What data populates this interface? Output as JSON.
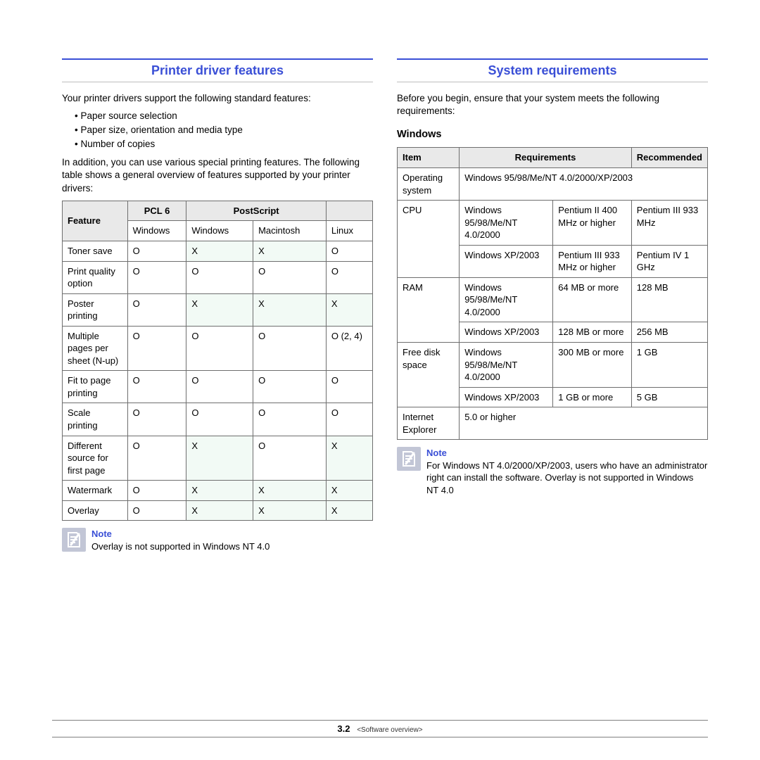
{
  "colors": {
    "accent": "#3a4fd6",
    "rule_grey": "#bdbdbd",
    "table_border": "#6e6e6e",
    "header_bg": "#e9e9e9",
    "tint_bg": "#f2faf5",
    "note_icon_bg": "#c2c6d6",
    "page_bg": "#ffffff",
    "text": "#000000"
  },
  "left": {
    "title": "Printer driver features",
    "intro": "Your printer drivers support the following standard features:",
    "bullets": [
      "Paper source selection",
      "Paper size, orientation and media type",
      "Number of copies"
    ],
    "para2": "In addition, you can use various special printing features. The following table shows a general overview of features supported by your printer drivers:",
    "table": {
      "header_top": {
        "feature": "Feature",
        "pcl": "PCL 6",
        "ps": "PostScript",
        "blank": ""
      },
      "header_sub": [
        "Windows",
        "Windows",
        "Macintosh",
        "Linux"
      ],
      "rows": [
        {
          "feature": "Toner save",
          "cells": [
            {
              "v": "O"
            },
            {
              "v": "X",
              "t": true
            },
            {
              "v": "X",
              "t": true
            },
            {
              "v": "O"
            }
          ]
        },
        {
          "feature": "Print quality option",
          "cells": [
            {
              "v": "O"
            },
            {
              "v": "O"
            },
            {
              "v": "O"
            },
            {
              "v": "O"
            }
          ]
        },
        {
          "feature": "Poster printing",
          "cells": [
            {
              "v": "O"
            },
            {
              "v": "X",
              "t": true
            },
            {
              "v": "X",
              "t": true
            },
            {
              "v": "X",
              "t": true
            }
          ]
        },
        {
          "feature": "Multiple pages per sheet (N-up)",
          "cells": [
            {
              "v": "O"
            },
            {
              "v": "O"
            },
            {
              "v": "O"
            },
            {
              "v": "O (2, 4)"
            }
          ]
        },
        {
          "feature": "Fit to page printing",
          "cells": [
            {
              "v": "O"
            },
            {
              "v": "O"
            },
            {
              "v": "O"
            },
            {
              "v": "O"
            }
          ]
        },
        {
          "feature": "Scale printing",
          "cells": [
            {
              "v": "O"
            },
            {
              "v": "O"
            },
            {
              "v": "O"
            },
            {
              "v": "O"
            }
          ]
        },
        {
          "feature": "Different source for first page",
          "cells": [
            {
              "v": "O"
            },
            {
              "v": "X",
              "t": true
            },
            {
              "v": "O"
            },
            {
              "v": "X",
              "t": true
            }
          ]
        },
        {
          "feature": "Watermark",
          "cells": [
            {
              "v": "O"
            },
            {
              "v": "X",
              "t": true
            },
            {
              "v": "X",
              "t": true
            },
            {
              "v": "X",
              "t": true
            }
          ]
        },
        {
          "feature": "Overlay",
          "cells": [
            {
              "v": "O"
            },
            {
              "v": "X",
              "t": true
            },
            {
              "v": "X",
              "t": true
            },
            {
              "v": "X",
              "t": true
            }
          ]
        }
      ]
    },
    "note_label": "Note",
    "note_text": "Overlay is not supported in Windows NT 4.0"
  },
  "right": {
    "title": "System requirements",
    "intro": "Before you begin, ensure that your system meets the following requirements:",
    "os_heading": "Windows",
    "headers": [
      "Item",
      "Requirements",
      "Recommended"
    ],
    "rows": [
      {
        "item": "Operating system",
        "os_full": "Windows 95/98/Me/NT 4.0/2000/XP/2003"
      },
      {
        "item": "CPU",
        "sub": [
          {
            "os": "Windows 95/98/Me/NT 4.0/2000",
            "req": "Pentium II 400 MHz or higher",
            "rec": "Pentium III 933 MHz"
          },
          {
            "os": "Windows XP/2003",
            "req": "Pentium III 933 MHz or higher",
            "rec": "Pentium IV 1 GHz"
          }
        ]
      },
      {
        "item": "RAM",
        "sub": [
          {
            "os": "Windows 95/98/Me/NT 4.0/2000",
            "req": "64 MB or more",
            "rec": "128 MB"
          },
          {
            "os": "Windows XP/2003",
            "req": "128 MB or more",
            "rec": "256 MB"
          }
        ]
      },
      {
        "item": "Free disk space",
        "sub": [
          {
            "os": "Windows 95/98/Me/NT 4.0/2000",
            "req": "300 MB or more",
            "rec": "1 GB"
          },
          {
            "os": "Windows XP/2003",
            "req": "1 GB or more",
            "rec": "5 GB"
          }
        ]
      },
      {
        "item": "Internet Explorer",
        "os_full": "5.0 or higher"
      }
    ],
    "note_label": "Note",
    "note_text": "For Windows NT 4.0/2000/XP/2003, users who have an administrator right can install the software. Overlay is not supported in Windows NT 4.0"
  },
  "footer": {
    "page": "3.2",
    "chapter": "<Software overview>"
  }
}
